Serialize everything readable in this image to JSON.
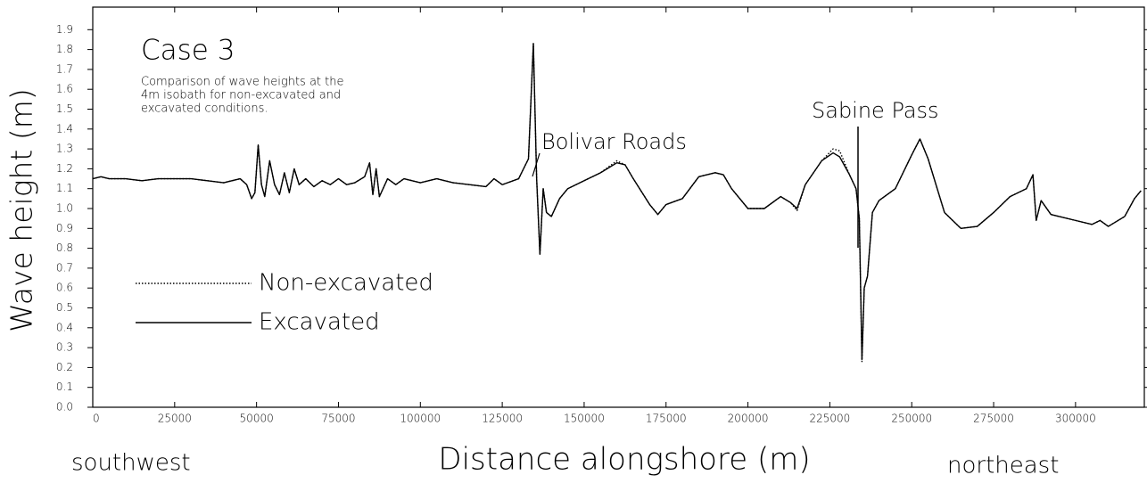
{
  "chart_data": {
    "type": "line",
    "title": "Case 3",
    "subtitle": [
      "Comparison of wave heights at the",
      "4m isobath for non-excavated and",
      "excavated conditions."
    ],
    "xlabel": "Distance alongshore (m)",
    "ylabel": "Wave height (m)",
    "annotations": [
      "Bolivar Roads",
      "Sabine Pass",
      "southwest",
      "northeast"
    ],
    "x": [
      0,
      2500,
      5000,
      10000,
      15000,
      20000,
      25000,
      30000,
      35000,
      40000,
      45000,
      47000,
      48500,
      49500,
      50500,
      51500,
      52500,
      54000,
      55500,
      57000,
      58500,
      60000,
      61500,
      63000,
      65000,
      67500,
      70000,
      72500,
      75000,
      77500,
      80000,
      83000,
      84500,
      85500,
      86500,
      87500,
      90000,
      92500,
      95000,
      100000,
      105000,
      110000,
      115000,
      120000,
      122500,
      125000,
      130000,
      133000,
      134500,
      135500,
      136500,
      137500,
      138500,
      140000,
      142500,
      145000,
      150000,
      155000,
      160000,
      162500,
      165000,
      170000,
      172500,
      175000,
      180000,
      185000,
      190000,
      192500,
      195000,
      200000,
      205000,
      210000,
      213000,
      215000,
      217500,
      222500,
      226000,
      228000,
      231000,
      233000,
      234000,
      234800,
      235500,
      236500,
      238000,
      240000,
      245000,
      250000,
      252500,
      255000,
      260000,
      265000,
      270000,
      275000,
      280000,
      285000,
      287000,
      288000,
      289500,
      292500,
      295000,
      300000,
      305000,
      307500,
      310000,
      315000,
      318000,
      320000
    ],
    "series": [
      {
        "name": "Non-excavated",
        "color": "#000000",
        "line_style": "dotted",
        "values": [
          1.15,
          1.16,
          1.15,
          1.15,
          1.14,
          1.15,
          1.15,
          1.15,
          1.14,
          1.13,
          1.15,
          1.12,
          1.05,
          1.08,
          1.32,
          1.12,
          1.06,
          1.24,
          1.12,
          1.07,
          1.18,
          1.08,
          1.2,
          1.12,
          1.15,
          1.11,
          1.14,
          1.12,
          1.15,
          1.12,
          1.13,
          1.16,
          1.23,
          1.07,
          1.2,
          1.06,
          1.15,
          1.12,
          1.15,
          1.13,
          1.15,
          1.13,
          1.12,
          1.11,
          1.15,
          1.12,
          1.15,
          1.25,
          1.83,
          1.15,
          0.77,
          1.1,
          0.98,
          0.96,
          1.05,
          1.1,
          1.14,
          1.18,
          1.24,
          1.22,
          1.15,
          1.02,
          0.97,
          1.02,
          1.05,
          1.16,
          1.18,
          1.17,
          1.1,
          1.0,
          1.0,
          1.06,
          1.03,
          0.99,
          1.12,
          1.24,
          1.3,
          1.29,
          1.17,
          1.1,
          0.95,
          0.23,
          0.6,
          0.66,
          0.98,
          1.04,
          1.1,
          1.27,
          1.35,
          1.25,
          0.98,
          0.9,
          0.91,
          0.98,
          1.06,
          1.1,
          1.17,
          0.94,
          1.04,
          0.97,
          0.96,
          0.94,
          0.92,
          0.94,
          0.91,
          0.96,
          1.05,
          1.09
        ]
      },
      {
        "name": "Excavated",
        "color": "#000000",
        "line_style": "solid",
        "values": [
          1.15,
          1.16,
          1.15,
          1.15,
          1.14,
          1.15,
          1.15,
          1.15,
          1.14,
          1.13,
          1.15,
          1.12,
          1.05,
          1.08,
          1.32,
          1.12,
          1.06,
          1.24,
          1.12,
          1.07,
          1.18,
          1.08,
          1.2,
          1.12,
          1.15,
          1.11,
          1.14,
          1.12,
          1.15,
          1.12,
          1.13,
          1.16,
          1.23,
          1.07,
          1.2,
          1.06,
          1.15,
          1.12,
          1.15,
          1.13,
          1.15,
          1.13,
          1.12,
          1.11,
          1.15,
          1.12,
          1.15,
          1.25,
          1.83,
          1.15,
          0.77,
          1.1,
          0.98,
          0.96,
          1.05,
          1.1,
          1.14,
          1.18,
          1.23,
          1.22,
          1.15,
          1.02,
          0.97,
          1.02,
          1.05,
          1.16,
          1.18,
          1.17,
          1.1,
          1.0,
          1.0,
          1.06,
          1.03,
          1.0,
          1.12,
          1.24,
          1.28,
          1.26,
          1.17,
          1.1,
          0.95,
          0.24,
          0.6,
          0.66,
          0.98,
          1.04,
          1.1,
          1.27,
          1.35,
          1.25,
          0.98,
          0.9,
          0.91,
          0.98,
          1.06,
          1.1,
          1.17,
          0.94,
          1.04,
          0.97,
          0.96,
          0.94,
          0.92,
          0.94,
          0.91,
          0.96,
          1.05,
          1.09
        ]
      }
    ],
    "xlim": [
      0,
      321000
    ],
    "xticks": [
      0,
      25000,
      50000,
      75000,
      100000,
      125000,
      150000,
      175000,
      200000,
      225000,
      250000,
      275000,
      300000
    ],
    "ylim": [
      0,
      2.0
    ],
    "yticks": [
      {
        "value": 0,
        "label": "0.0"
      },
      0.1,
      0.2,
      0.3,
      0.4,
      0.5,
      0.6,
      0.7,
      0.8,
      0.9,
      {
        "value": 1,
        "label": "1.0"
      },
      1.1,
      1.2,
      1.3,
      1.4,
      1.5,
      1.6,
      1.7,
      1.8,
      1.9
    ],
    "grid": false
  }
}
